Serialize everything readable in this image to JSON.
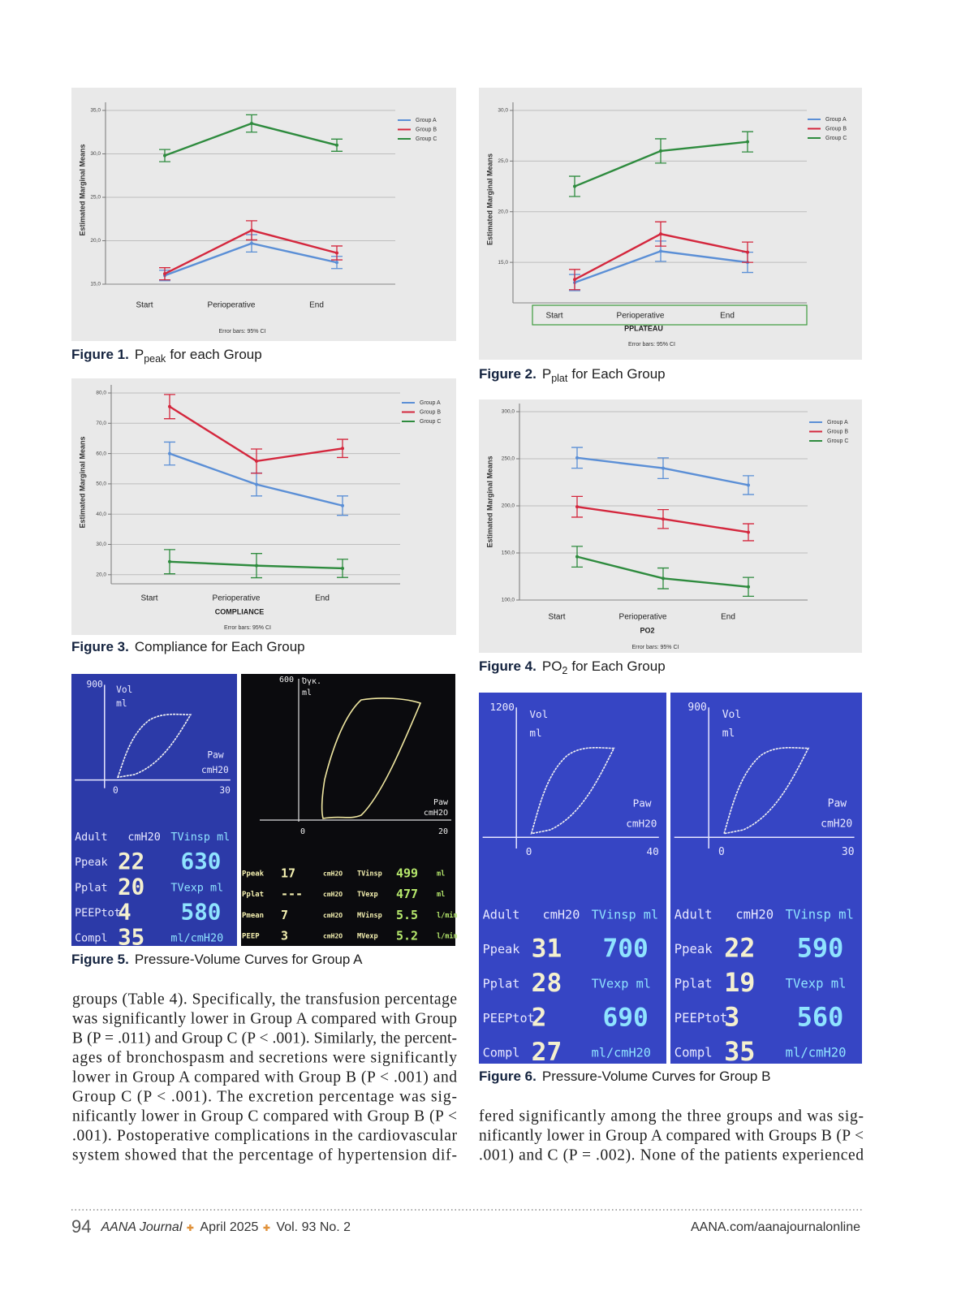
{
  "chart_data": [
    {
      "type": "line",
      "ylabel": "Estimated Marginal Means",
      "note": "Error bars: 95% CI",
      "categories": [
        "Start",
        "Perioperative",
        "End"
      ],
      "series": [
        {
          "name": "Group A",
          "color": "#5b8fd6",
          "values": [
            16.0,
            19.7,
            17.5
          ],
          "errors": [
            0.6,
            1.0,
            0.7
          ]
        },
        {
          "name": "Group B",
          "color": "#d4273d",
          "values": [
            16.2,
            21.2,
            18.6
          ],
          "errors": [
            0.7,
            1.1,
            0.8
          ]
        },
        {
          "name": "Group C",
          "color": "#2e8b3e",
          "values": [
            29.8,
            33.5,
            31.0
          ],
          "errors": [
            0.7,
            1.0,
            0.7
          ]
        }
      ],
      "ylim": [
        15,
        35
      ],
      "yticks": [
        {
          "value": 15,
          "label": "15,0"
        },
        {
          "value": 20,
          "label": "20,0"
        },
        {
          "value": 25,
          "label": "25,0"
        },
        {
          "value": 30,
          "label": "30,0"
        },
        {
          "value": 35,
          "label": "35,0"
        }
      ],
      "grid": true,
      "legend": "upper right"
    },
    {
      "type": "line",
      "ylabel": "Estimated Marginal Means",
      "xlabel": "PPLATEAU",
      "note": "Error bars: 95% CI",
      "categories": [
        "Start",
        "Perioperative",
        "End"
      ],
      "series": [
        {
          "name": "Group A",
          "color": "#5b8fd6",
          "values": [
            13.0,
            16.1,
            15.0
          ],
          "errors": [
            0.8,
            1.0,
            1.0
          ]
        },
        {
          "name": "Group B",
          "color": "#d4273d",
          "values": [
            13.3,
            17.8,
            16.0
          ],
          "errors": [
            1.0,
            1.2,
            1.0
          ]
        },
        {
          "name": "Group C",
          "color": "#2e8b3e",
          "values": [
            22.5,
            26.0,
            26.9
          ],
          "errors": [
            1.0,
            1.2,
            1.0
          ]
        }
      ],
      "ylim": [
        11,
        30
      ],
      "yticks": [
        {
          "value": 15,
          "label": "15,0"
        },
        {
          "value": 20,
          "label": "20,0"
        },
        {
          "value": 25,
          "label": "25,0"
        },
        {
          "value": 30,
          "label": "30,0"
        }
      ],
      "grid": true,
      "legend": "upper right"
    },
    {
      "type": "line",
      "ylabel": "Estimated Marginal Means",
      "xlabel": "COMPLIANCE",
      "note": "Error bars: 95% CI",
      "categories": [
        "Start",
        "Perioperative",
        "End"
      ],
      "series": [
        {
          "name": "Group A",
          "color": "#5b8fd6",
          "values": [
            60.0,
            49.8,
            42.8
          ],
          "errors": [
            3.8,
            3.8,
            3.2
          ]
        },
        {
          "name": "Group B",
          "color": "#d4273d",
          "values": [
            75.5,
            57.5,
            61.7
          ],
          "errors": [
            4.0,
            4.0,
            3.0
          ]
        },
        {
          "name": "Group C",
          "color": "#2e8b3e",
          "values": [
            24.3,
            23.0,
            22.1
          ],
          "errors": [
            4.0,
            4.0,
            3.0
          ]
        }
      ],
      "ylim": [
        17,
        80
      ],
      "yticks": [
        {
          "value": 20,
          "label": "20,0"
        },
        {
          "value": 30,
          "label": "30,0"
        },
        {
          "value": 40,
          "label": "40,0"
        },
        {
          "value": 50,
          "label": "50,0"
        },
        {
          "value": 60,
          "label": "60,0"
        },
        {
          "value": 70,
          "label": "70,0"
        },
        {
          "value": 80,
          "label": "80,0"
        }
      ],
      "grid": true,
      "legend": "upper right"
    },
    {
      "type": "line",
      "ylabel": "Estimated Marginal Means",
      "xlabel": "PO2",
      "note": "Error bars: 95% CI",
      "categories": [
        "Start",
        "Perioperative",
        "End"
      ],
      "series": [
        {
          "name": "Group A",
          "color": "#5b8fd6",
          "values": [
            251,
            240,
            222
          ],
          "errors": [
            11,
            11,
            10
          ]
        },
        {
          "name": "Group B",
          "color": "#d4273d",
          "values": [
            199,
            186,
            172
          ],
          "errors": [
            11,
            10,
            9
          ]
        },
        {
          "name": "Group C",
          "color": "#2e8b3e",
          "values": [
            146,
            123,
            114
          ],
          "errors": [
            11,
            11,
            10
          ]
        }
      ],
      "ylim": [
        100,
        300
      ],
      "yticks": [
        {
          "value": 100,
          "label": "100,0"
        },
        {
          "value": 150,
          "label": "150,0"
        },
        {
          "value": 200,
          "label": "200,0"
        },
        {
          "value": 250,
          "label": "250,0"
        },
        {
          "value": 300,
          "label": "300,0"
        }
      ],
      "grid": true,
      "legend": "upper right"
    }
  ],
  "captions": [
    {
      "label": "Figure 1.",
      "symbol": "P",
      "subscript": "peak",
      "text": "for each Group"
    },
    {
      "label": "Figure 2.",
      "symbol": "P",
      "subscript": "plat",
      "text": "for Each Group"
    },
    {
      "label": "Figure 3.",
      "text": "Compliance for Each Group"
    },
    {
      "label": "Figure 4.",
      "symbol": "PO",
      "subscript": "2",
      "text": "for Each Group"
    },
    {
      "label": "Figure 5.",
      "text": "Pressure-Volume Curves for Group A"
    },
    {
      "label": "Figure 6.",
      "text": "Pressure-Volume Curves for Group B"
    }
  ],
  "screens": [
    {
      "ymax": 900,
      "ylabel": "Vol",
      "yunit": "ml",
      "xlabel": "Paw",
      "xunit": "cmH20",
      "origin": 0,
      "xmax": 30,
      "rows": [
        [
          "Adult",
          "cmH20",
          "TVinsp ml"
        ],
        [
          "Ppeak",
          22,
          630
        ],
        [
          "Pplat",
          20,
          "TVexp ml"
        ],
        [
          "PEEPtot",
          4,
          580
        ],
        [
          "Compl",
          35,
          "ml/cmH20"
        ]
      ]
    },
    {
      "ymax": 600,
      "ylabel": "Όγκ.",
      "yunit": "ml",
      "xlabel": "Paw",
      "xunit": "cmH2O",
      "origin": 0,
      "xmax": 20,
      "rows": [
        [
          "Ppeak",
          17,
          "cmH2O",
          "TVinsp",
          499,
          "ml"
        ],
        [
          "Pplat",
          "---",
          "cmH2O",
          "TVexp",
          477,
          "ml"
        ],
        [
          "Pmean",
          7,
          "cmH2O",
          "MVinsp",
          5.5,
          "l/min"
        ],
        [
          "PEEP",
          3,
          "cmH2O",
          "MVexp",
          5.2,
          "l/min"
        ]
      ]
    },
    {
      "ymax": 1200,
      "ylabel": "Vol",
      "yunit": "ml",
      "xlabel": "Paw",
      "xunit": "cmH20",
      "origin": 0,
      "xmax": 40,
      "rows": [
        [
          "Adult",
          "cmH20",
          "TVinsp ml"
        ],
        [
          "Ppeak",
          31,
          700
        ],
        [
          "Pplat",
          28,
          "TVexp ml"
        ],
        [
          "PEEPtot",
          2,
          690
        ],
        [
          "Compl",
          27,
          "ml/cmH20"
        ]
      ]
    },
    {
      "ymax": 900,
      "ylabel": "Vol",
      "yunit": "ml",
      "xlabel": "Paw",
      "xunit": "cmH20",
      "origin": 0,
      "xmax": 30,
      "rows": [
        [
          "Adult",
          "cmH20",
          "TVinsp ml"
        ],
        [
          "Ppeak",
          22,
          590
        ],
        [
          "Pplat",
          19,
          "TVexp ml"
        ],
        [
          "PEEPtot",
          3,
          560
        ],
        [
          "Compl",
          35,
          "ml/cmH20"
        ]
      ]
    }
  ],
  "body": {
    "left": [
      "groups (Table 4). Specifically, the transfusion percentage",
      "was significantly lower in Group A compared with Group",
      "B (P = .011) and Group C (P < .001). Similarly, the percent-",
      "ages of bronchospasm and secretions were significantly",
      "lower in Group A compared with Group B (P < .001) and",
      "Group C (P < .001). The excretion percentage was sig-",
      "nificantly lower in Group C compared with Group B (P <",
      ".001). Postoperative complications in the cardiovascular",
      "system showed that the percentage of hypertension dif-"
    ],
    "right": [
      "fered significantly among the three groups and was sig-",
      "nificantly lower in Group A compared with Groups B (P <",
      ".001) and C (P = .002). None of the patients experienced"
    ]
  },
  "footer": {
    "page": 94,
    "journal": "AANA Journal",
    "date": "April 2025",
    "volume": "Vol. 93  No. 2",
    "url": "AANA.com/aanajournalonline"
  }
}
